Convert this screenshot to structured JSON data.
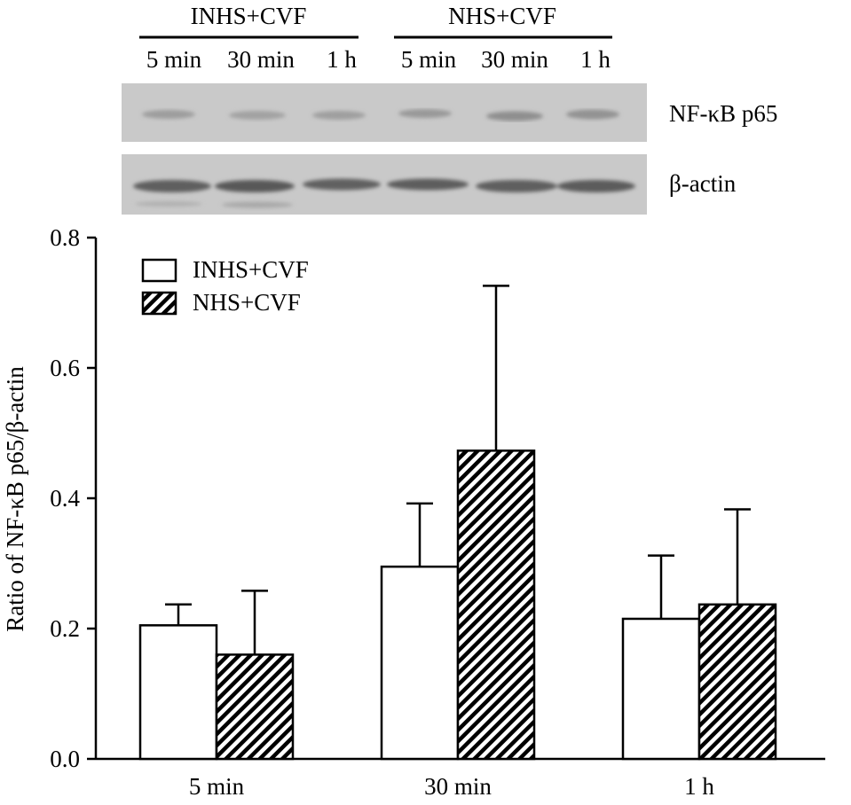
{
  "blot": {
    "group_labels": [
      "INHS+CVF",
      "NHS+CVF"
    ],
    "lane_labels": [
      "5 min",
      "30 min",
      "1 h",
      "5 min",
      "30 min",
      "1 h"
    ],
    "band_labels": [
      "NF-κB p65",
      "β-actin"
    ],
    "colors": {
      "membrane": "#c9c9c9",
      "band": "#6f6f6f"
    }
  },
  "chart_data": {
    "type": "bar",
    "categories": [
      "5 min",
      "30 min",
      "1 h"
    ],
    "series": [
      {
        "name": "INHS+CVF",
        "values": [
          0.205,
          0.295,
          0.215
        ],
        "errors": [
          0.032,
          0.097,
          0.097
        ],
        "fill": "#ffffff"
      },
      {
        "name": "NHS+CVF",
        "values": [
          0.16,
          0.473,
          0.237
        ],
        "errors": [
          0.098,
          0.253,
          0.146
        ],
        "fill": "hatch"
      }
    ],
    "title": "",
    "xlabel": "",
    "ylabel": "Ratio of NF-κB p65/β-actin",
    "ylim": [
      0,
      0.8
    ],
    "yticks": [
      "0.0",
      "0.2",
      "0.4",
      "0.6",
      "0.8"
    ],
    "legend": [
      "INHS+CVF",
      "NHS+CVF"
    ],
    "legend_position": "top-left"
  }
}
